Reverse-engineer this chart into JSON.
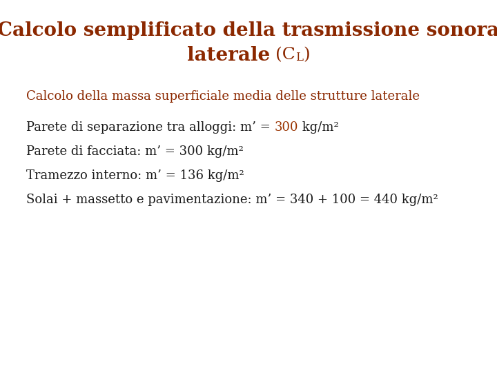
{
  "title_line1": "Calcolo semplificato della trasmissione sonora",
  "title_line2_bold": "laterale",
  "title_color": "#8B2800",
  "subtitle": "Calcolo della massa superficiale media delle strutture laterale",
  "subtitle_color": "#8B2800",
  "line1_pre": "Parete di separazione tra alloggi: m’ = ",
  "line1_hl": "300",
  "line1_suf": " kg/m²",
  "line2": "Parete di facciata: m’ = 300 kg/m²",
  "line3": "Tramezzo interno: m’ = 136 kg/m²",
  "line4": "Solai + massetto e pavimentazione: m’ = 340 + 100 = 440 kg/m²",
  "body_color": "#1a1a1a",
  "highlight_color": "#993300",
  "background_color": "#ffffff",
  "title_fontsize": 20,
  "subtitle_fontsize": 13,
  "body_fontsize": 13
}
